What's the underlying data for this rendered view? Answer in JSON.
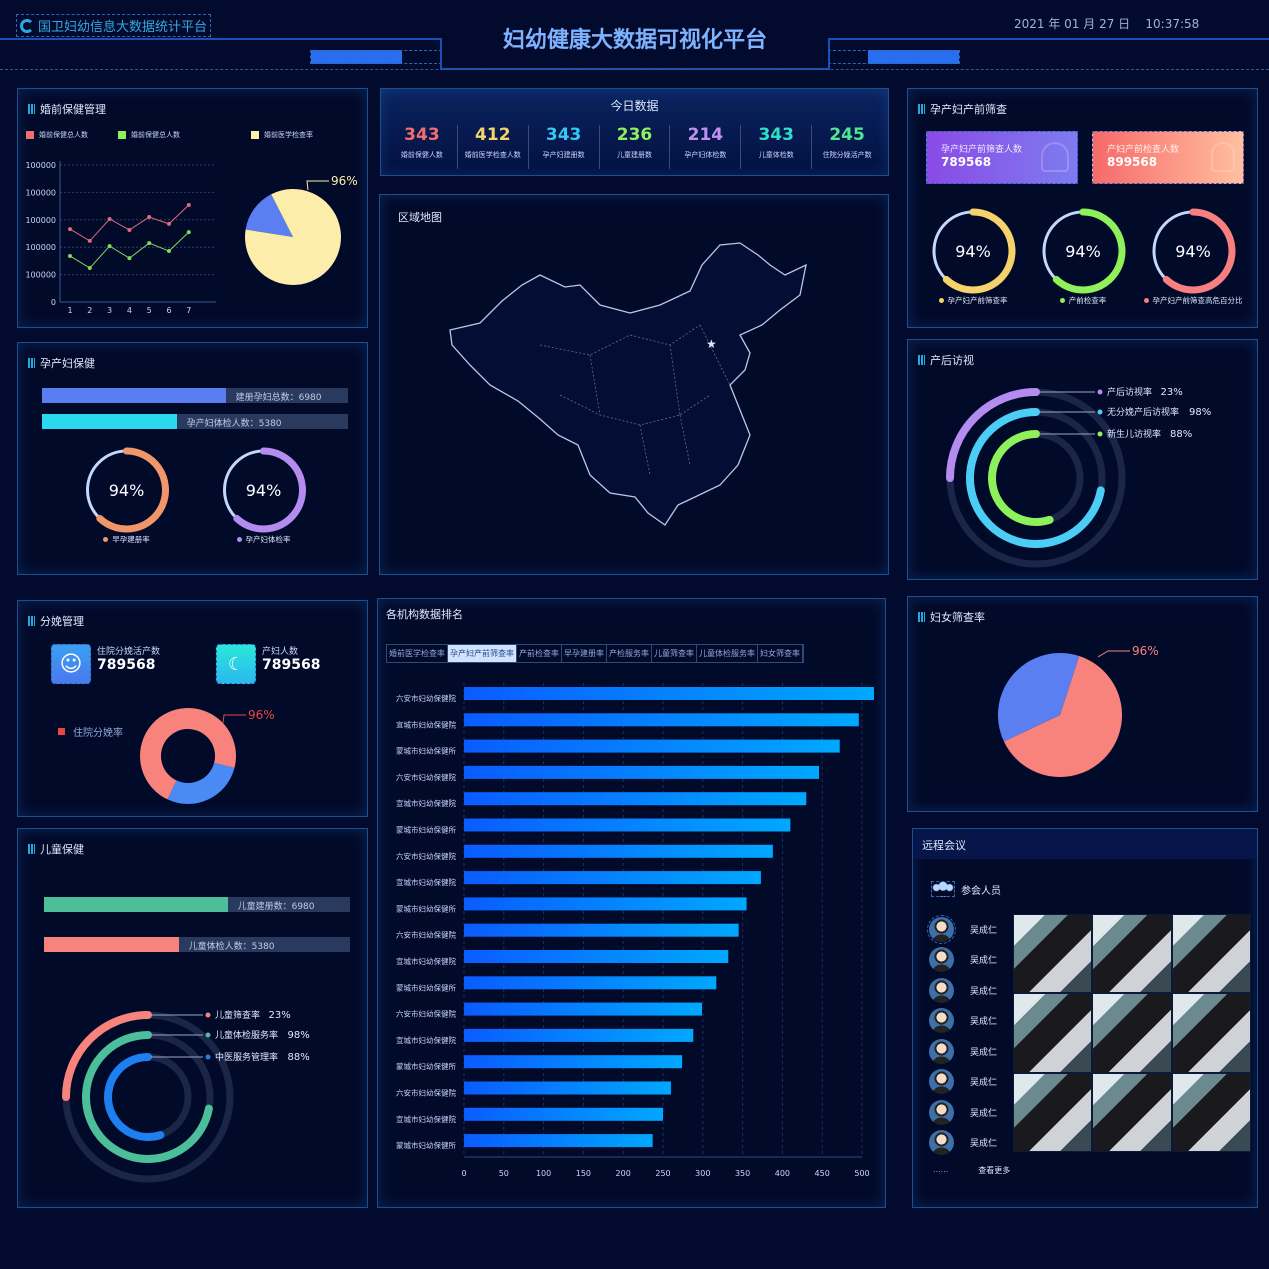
{
  "header": {
    "logo_text": "国卫妇幼信息大数据统计平台",
    "title": "妇幼健康大数据可视化平台",
    "datetime": "2021 年 01 月 27 日    10:37:58"
  },
  "colors": {
    "background": "#020b2e",
    "accent": "#1a4fb8",
    "title": "#7fb2ff"
  },
  "premarital": {
    "title": "婚前保健管理",
    "legend": [
      {
        "label": "婚前保健总人数",
        "color": "#f26d6d"
      },
      {
        "label": "婚前保健总人数",
        "color": "#8ef05a"
      },
      {
        "label": "婚前医学检查率",
        "color": "#fdedaa"
      }
    ],
    "chart_data": {
      "type": "line",
      "x": [
        "1",
        "2",
        "3",
        "4",
        "5",
        "6",
        "7"
      ],
      "ytick_labels": [
        "0",
        "100000",
        "100000",
        "100000",
        "100000",
        "100000"
      ],
      "series": [
        {
          "color": "#e06a7a",
          "values": [
            2.66,
            2.23,
            3.03,
            2.63,
            3.1,
            2.85,
            3.54
          ]
        },
        {
          "color": "#7fd85a",
          "values": [
            1.68,
            1.24,
            2.04,
            1.6,
            2.15,
            1.86,
            2.55
          ]
        }
      ],
      "grid": true
    },
    "pie": {
      "type": "pie",
      "label": "96%",
      "slices": [
        {
          "color": "#fdedaa",
          "share": 0.85
        },
        {
          "color": "#5b7ef0",
          "share": 0.15
        }
      ]
    }
  },
  "today": {
    "title": "今日数据",
    "items": [
      {
        "value": "343",
        "label": "婚前保健人数",
        "color": "#f26d6d"
      },
      {
        "value": "412",
        "label": "婚前医学检查人数",
        "color": "#f5d36a"
      },
      {
        "value": "343",
        "label": "孕产妇建册数",
        "color": "#35c8f0"
      },
      {
        "value": "236",
        "label": "儿童建册数",
        "color": "#8ef05a"
      },
      {
        "value": "214",
        "label": "孕产妇体检数",
        "color": "#c490f0"
      },
      {
        "value": "343",
        "label": "儿童体检数",
        "color": "#2ee0c8"
      },
      {
        "value": "245",
        "label": "住院分娩活产数",
        "color": "#4ee890"
      }
    ]
  },
  "prenatal": {
    "title": "孕产妇产前筛查",
    "cards": [
      {
        "label": "孕产妇产前筛查人数",
        "value": "789568",
        "icon": "users-icon"
      },
      {
        "label": "产妇产前检查人数",
        "value": "899568",
        "icon": "user-icon"
      }
    ],
    "gauges": [
      {
        "value": "94%",
        "label": "孕产妇产前筛查率",
        "color": "#f5d36a",
        "fill": 0.62
      },
      {
        "value": "94%",
        "label": "产前检查率",
        "color": "#8ef05a",
        "fill": 0.62
      },
      {
        "value": "94%",
        "label": "孕产妇产前筛查高危百分比",
        "color": "#f77f7f",
        "fill": 0.62
      }
    ]
  },
  "maternal": {
    "title": "孕产妇保健",
    "bars": [
      {
        "text": "建册孕妇总数：6980",
        "color": "#5a7ef2",
        "fill": 0.6
      },
      {
        "text": "孕产妇体检人数：5380",
        "color": "#2ad8f0",
        "fill": 0.44
      }
    ],
    "gauges": [
      {
        "value": "94%",
        "label": "早孕建册率",
        "color": "#f0966a",
        "fill": 0.62
      },
      {
        "value": "94%",
        "label": "孕产妇体检率",
        "color": "#b48cf0",
        "fill": 0.62
      }
    ]
  },
  "map": {
    "title": "区域地图"
  },
  "postpartum": {
    "title": "产后访视",
    "rings": [
      {
        "label": "产后访视率",
        "value": "23%",
        "color": "#b48cf0",
        "fill": 0.25
      },
      {
        "label": "无分娩产后访视率",
        "value": "98%",
        "color": "#4ccdf5",
        "fill": 0.72
      },
      {
        "label": "新生儿访视率",
        "value": "88%",
        "color": "#8ef05a",
        "fill": 0.55
      }
    ]
  },
  "delivery": {
    "title": "分娩管理",
    "stats": [
      {
        "label": "住院分娩活产数",
        "value": "789568",
        "icon": "baby-face-icon"
      },
      {
        "label": "产妇人数",
        "value": "789568",
        "icon": "mother-icon"
      }
    ],
    "legend": "住院分娩率",
    "pie": {
      "label": "96%",
      "slices": [
        {
          "color": "#f7837c",
          "share": 0.72
        },
        {
          "color": "#4a8af5",
          "share": 0.28
        }
      ]
    }
  },
  "ranking": {
    "title": "各机构数据排名",
    "tabs": [
      "婚前医学检查率",
      "孕产妇产前筛查率",
      "产前检查率",
      "早孕建册率",
      "产检服务率",
      "儿童筛查率",
      "儿童体检服务率",
      "妇女筛查率"
    ],
    "active_tab": 1,
    "chart_data": {
      "type": "bar",
      "orientation": "horizontal",
      "xlim": [
        0,
        500
      ],
      "xticks": [
        "0",
        "50",
        "100",
        "150",
        "200",
        "250",
        "300",
        "350",
        "400",
        "450",
        "500"
      ],
      "categories": [
        "六安市妇幼保健院",
        "宣城市妇幼保健院",
        "蒙城市妇幼保健所",
        "六安市妇幼保健院",
        "宣城市妇幼保健院",
        "蒙城市妇幼保健所",
        "六安市妇幼保健院",
        "宣城市妇幼保健院",
        "蒙城市妇幼保健所",
        "六安市妇幼保健院",
        "宣城市妇幼保健院",
        "蒙城市妇幼保健所",
        "六安市妇幼保健院",
        "宣城市妇幼保健院",
        "蒙城市妇幼保健所",
        "六安市妇幼保健院",
        "宣城市妇幼保健院",
        "蒙城市妇幼保健所"
      ],
      "values": [
        515,
        496,
        472,
        446,
        430,
        410,
        388,
        373,
        355,
        345,
        332,
        317,
        299,
        288,
        274,
        260,
        250,
        237
      ]
    }
  },
  "women": {
    "title": "妇女筛查率",
    "pie": {
      "label": "96%",
      "slices": [
        {
          "color": "#f7837c",
          "share": 0.63
        },
        {
          "color": "#5b7ef0",
          "share": 0.37
        }
      ]
    }
  },
  "child": {
    "title": "儿童保健",
    "bars": [
      {
        "text": "儿童建册数：6980",
        "color": "#4cbf9a",
        "fill": 0.6
      },
      {
        "text": "儿童体检人数：5380",
        "color": "#f7837c",
        "fill": 0.44
      }
    ],
    "rings": [
      {
        "label": "儿童筛查率",
        "value": "23%",
        "color": "#f7837c",
        "fill": 0.25
      },
      {
        "label": "儿童体检服务率",
        "value": "98%",
        "color": "#4cbf9a",
        "fill": 0.72
      },
      {
        "label": "中医服务管理率",
        "value": "88%",
        "color": "#1e7ff0",
        "fill": 0.55
      }
    ]
  },
  "meeting": {
    "title": "远程会议",
    "participants_label": "参会人员",
    "participants": [
      "吴成仁",
      "吴成仁",
      "吴成仁",
      "吴成仁",
      "吴成仁",
      "吴成仁",
      "吴成仁",
      "吴成仁"
    ],
    "more_dots": "......",
    "more_label": "查看更多"
  }
}
